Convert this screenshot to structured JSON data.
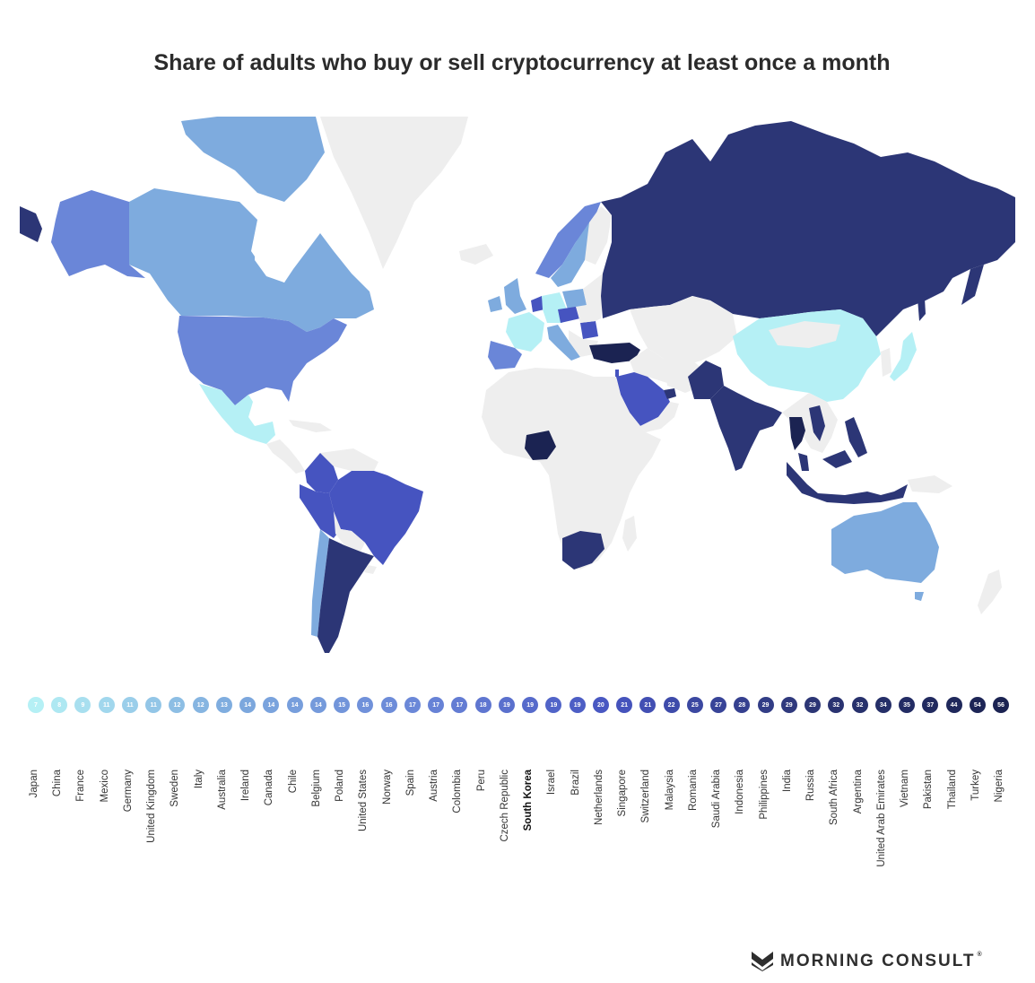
{
  "title": "Share of adults who buy or sell cryptocurrency at least once a month",
  "brand": {
    "name": "MORNING CONSULT",
    "mark": "®"
  },
  "colors": {
    "no_data": "#eeeeee",
    "scale": [
      "#b5f0f5",
      "#7eabde",
      "#6a86d8",
      "#4654c0",
      "#2c3676",
      "#1b2352"
    ]
  },
  "legend": {
    "highlight": "South Korea",
    "entries": [
      {
        "country": "Japan",
        "value": 7,
        "label": "7"
      },
      {
        "country": "China",
        "value": 8,
        "label": "8"
      },
      {
        "country": "France",
        "value": 9,
        "label": "9"
      },
      {
        "country": "Mexico",
        "value": 11,
        "label": "11"
      },
      {
        "country": "Germany",
        "value": 11,
        "label": "11"
      },
      {
        "country": "United Kingdom",
        "value": 11,
        "label": "11"
      },
      {
        "country": "Sweden",
        "value": 12,
        "label": "12"
      },
      {
        "country": "Italy",
        "value": 12,
        "label": "12"
      },
      {
        "country": "Australia",
        "value": 13,
        "label": "13"
      },
      {
        "country": "Ireland",
        "value": 14,
        "label": "14"
      },
      {
        "country": "Canada",
        "value": 14,
        "label": "14"
      },
      {
        "country": "Chile",
        "value": 14,
        "label": "14"
      },
      {
        "country": "Belgium",
        "value": 14,
        "label": "14"
      },
      {
        "country": "Poland",
        "value": 15,
        "label": "15"
      },
      {
        "country": "United States",
        "value": 16,
        "label": "16"
      },
      {
        "country": "Norway",
        "value": 16,
        "label": "16"
      },
      {
        "country": "Spain",
        "value": 17,
        "label": "17"
      },
      {
        "country": "Austria",
        "value": 17,
        "label": "17"
      },
      {
        "country": "Colombia",
        "value": 17,
        "label": "17"
      },
      {
        "country": "Peru",
        "value": 18,
        "label": "18"
      },
      {
        "country": "Czech Republic",
        "value": 19,
        "label": "19"
      },
      {
        "country": "South Korea",
        "value": 19,
        "label": "19"
      },
      {
        "country": "Israel",
        "value": 19,
        "label": "19"
      },
      {
        "country": "Brazil",
        "value": 19,
        "label": "19"
      },
      {
        "country": "Netherlands",
        "value": 20,
        "label": "20"
      },
      {
        "country": "Singapore",
        "value": 21,
        "label": "21"
      },
      {
        "country": "Switzerland",
        "value": 21,
        "label": "21"
      },
      {
        "country": "Malaysia",
        "value": 22,
        "label": "22"
      },
      {
        "country": "Romania",
        "value": 25,
        "label": "25"
      },
      {
        "country": "Saudi Arabia",
        "value": 27,
        "label": "27"
      },
      {
        "country": "Indonesia",
        "value": 28,
        "label": "28"
      },
      {
        "country": "Philippines",
        "value": 29,
        "label": "29"
      },
      {
        "country": "India",
        "value": 29,
        "label": "29"
      },
      {
        "country": "Russia",
        "value": 29,
        "label": "29"
      },
      {
        "country": "South Africa",
        "value": 32,
        "label": "32"
      },
      {
        "country": "Argentina",
        "value": 32,
        "label": "32"
      },
      {
        "country": "United Arab Emirates",
        "value": 34,
        "label": "34"
      },
      {
        "country": "Vietnam",
        "value": 35,
        "label": "35"
      },
      {
        "country": "Pakistan",
        "value": 37,
        "label": "37"
      },
      {
        "country": "Thailand",
        "value": 44,
        "label": "44"
      },
      {
        "country": "Turkey",
        "value": 54,
        "label": "54"
      },
      {
        "country": "Nigeria",
        "value": 56,
        "label": "56"
      }
    ]
  }
}
